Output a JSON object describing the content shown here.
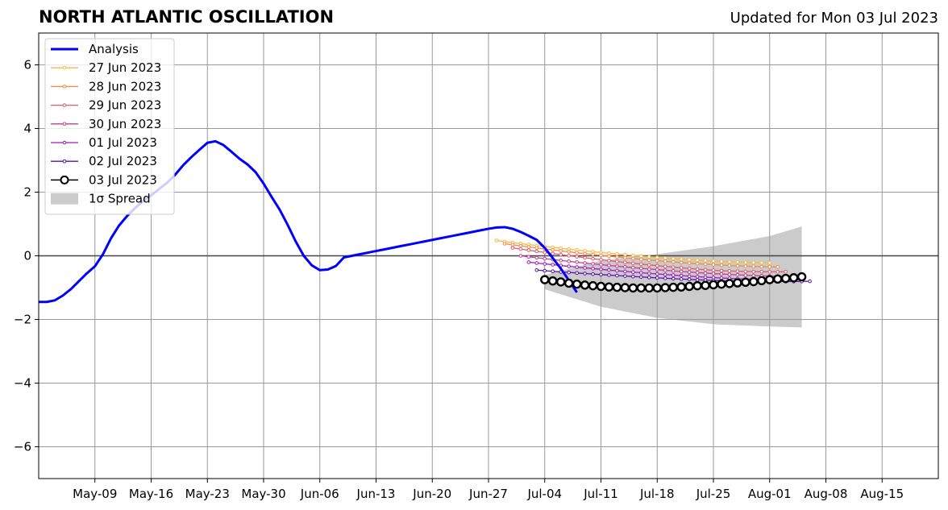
{
  "header": {
    "title": "NORTH ATLANTIC OSCILLATION",
    "updated": "Updated for Mon 03 Jul 2023"
  },
  "chart_data": {
    "type": "line",
    "title": "NORTH ATLANTIC OSCILLATION",
    "subtitle": "Updated for Mon 03 Jul 2023",
    "xlabel": "",
    "ylabel": "",
    "x_range": [
      "2023-05-02",
      "2023-08-22"
    ],
    "ylim": [
      -7,
      7
    ],
    "yticks": [
      -6,
      -4,
      -2,
      0,
      2,
      4,
      6
    ],
    "yticklabels": [
      "−6",
      "−4",
      "−2",
      "0",
      "2",
      "4",
      "6"
    ],
    "xticks": [
      "2023-05-09",
      "2023-05-16",
      "2023-05-23",
      "2023-05-30",
      "2023-06-06",
      "2023-06-13",
      "2023-06-20",
      "2023-06-27",
      "2023-07-04",
      "2023-07-11",
      "2023-07-18",
      "2023-07-25",
      "2023-08-01",
      "2023-08-08",
      "2023-08-15"
    ],
    "xticklabels": [
      "May-09",
      "May-16",
      "May-23",
      "May-30",
      "Jun-06",
      "Jun-13",
      "Jun-20",
      "Jun-27",
      "Jul-04",
      "Jul-11",
      "Jul-18",
      "Jul-25",
      "Aug-01",
      "Aug-08",
      "Aug-15"
    ],
    "grid": true,
    "legend_position": "top-left",
    "colors": {
      "analysis": "#0000ff",
      "spread": "#cbcbcb",
      "zero_line": "#444444",
      "grid": "#999999"
    },
    "analysis": {
      "name": "Analysis",
      "points": [
        [
          "2023-05-02",
          -1.45
        ],
        [
          "2023-05-03",
          -1.45
        ],
        [
          "2023-05-04",
          -1.4
        ],
        [
          "2023-05-05",
          -1.25
        ],
        [
          "2023-05-06",
          -1.05
        ],
        [
          "2023-05-07",
          -0.8
        ],
        [
          "2023-05-08",
          -0.55
        ],
        [
          "2023-05-09",
          -0.33
        ],
        [
          "2023-05-10",
          0.05
        ],
        [
          "2023-05-11",
          0.55
        ],
        [
          "2023-05-12",
          0.95
        ],
        [
          "2023-05-13",
          1.25
        ],
        [
          "2023-05-14",
          1.5
        ],
        [
          "2023-05-15",
          1.72
        ],
        [
          "2023-05-16",
          1.9
        ],
        [
          "2023-05-17",
          2.1
        ],
        [
          "2023-05-18",
          2.3
        ],
        [
          "2023-05-19",
          2.55
        ],
        [
          "2023-05-20",
          2.85
        ],
        [
          "2023-05-21",
          3.1
        ],
        [
          "2023-05-22",
          3.33
        ],
        [
          "2023-05-23",
          3.55
        ],
        [
          "2023-05-24",
          3.6
        ],
        [
          "2023-05-25",
          3.48
        ],
        [
          "2023-05-26",
          3.27
        ],
        [
          "2023-05-27",
          3.05
        ],
        [
          "2023-05-28",
          2.87
        ],
        [
          "2023-05-29",
          2.63
        ],
        [
          "2023-05-30",
          2.27
        ],
        [
          "2023-05-31",
          1.85
        ],
        [
          "2023-06-01",
          1.45
        ],
        [
          "2023-06-02",
          0.97
        ],
        [
          "2023-06-03",
          0.45
        ],
        [
          "2023-06-04",
          0.0
        ],
        [
          "2023-06-05",
          -0.3
        ],
        [
          "2023-06-06",
          -0.45
        ],
        [
          "2023-06-07",
          -0.43
        ],
        [
          "2023-06-08",
          -0.32
        ],
        [
          "2023-06-09",
          -0.05
        ],
        [
          "2023-06-10",
          0.0
        ],
        [
          "2023-06-11",
          0.05
        ],
        [
          "2023-06-12",
          0.1
        ],
        [
          "2023-06-13",
          0.15
        ],
        [
          "2023-06-14",
          0.2
        ],
        [
          "2023-06-15",
          0.25
        ],
        [
          "2023-06-16",
          0.3
        ],
        [
          "2023-06-17",
          0.35
        ],
        [
          "2023-06-18",
          0.4
        ],
        [
          "2023-06-19",
          0.45
        ],
        [
          "2023-06-20",
          0.5
        ],
        [
          "2023-06-21",
          0.55
        ],
        [
          "2023-06-22",
          0.6
        ],
        [
          "2023-06-23",
          0.65
        ],
        [
          "2023-06-24",
          0.7
        ],
        [
          "2023-06-25",
          0.75
        ],
        [
          "2023-06-26",
          0.8
        ],
        [
          "2023-06-27",
          0.85
        ],
        [
          "2023-06-28",
          0.89
        ],
        [
          "2023-06-29",
          0.9
        ],
        [
          "2023-06-30",
          0.85
        ],
        [
          "2023-07-01",
          0.75
        ],
        [
          "2023-07-02",
          0.63
        ],
        [
          "2023-07-03",
          0.5
        ],
        [
          "2023-07-04",
          0.25
        ],
        [
          "2023-07-05",
          -0.07
        ],
        [
          "2023-07-06",
          -0.4
        ],
        [
          "2023-07-07",
          -0.77
        ],
        [
          "2023-07-08",
          -1.15
        ]
      ]
    },
    "forecasts": [
      {
        "name": "27 Jun 2023",
        "color": "#f5b942",
        "start": "2023-06-28",
        "end": "2023-08-01",
        "y_start": 0.48,
        "y_min": -0.22,
        "y_end": -0.22
      },
      {
        "name": "28 Jun 2023",
        "color": "#f0894b",
        "start": "2023-06-29",
        "end": "2023-08-02",
        "y_start": 0.38,
        "y_min": -0.35,
        "y_end": -0.35
      },
      {
        "name": "29 Jun 2023",
        "color": "#dc5c6e",
        "start": "2023-06-30",
        "end": "2023-08-03",
        "y_start": 0.25,
        "y_min": -0.55,
        "y_end": -0.5
      },
      {
        "name": "30 Jun 2023",
        "color": "#c23c96",
        "start": "2023-07-01",
        "end": "2023-08-04",
        "y_start": 0.0,
        "y_min": -0.65,
        "y_end": -0.65
      },
      {
        "name": "01 Jul 2023",
        "color": "#9e1ab8",
        "start": "2023-07-02",
        "end": "2023-08-05",
        "y_start": -0.2,
        "y_min": -0.78,
        "y_end": -0.75
      },
      {
        "name": "02 Jul 2023",
        "color": "#5a0fa8",
        "start": "2023-07-03",
        "end": "2023-08-06",
        "y_start": -0.45,
        "y_min": -0.85,
        "y_end": -0.8
      }
    ],
    "current_forecast": {
      "name": "03 Jul 2023",
      "color": "#000000",
      "points": [
        [
          "2023-07-04",
          -0.75
        ],
        [
          "2023-07-05",
          -0.79
        ],
        [
          "2023-07-06",
          -0.82
        ],
        [
          "2023-07-07",
          -0.86
        ],
        [
          "2023-07-08",
          -0.89
        ],
        [
          "2023-07-09",
          -0.92
        ],
        [
          "2023-07-10",
          -0.94
        ],
        [
          "2023-07-11",
          -0.96
        ],
        [
          "2023-07-12",
          -0.98
        ],
        [
          "2023-07-13",
          -0.99
        ],
        [
          "2023-07-14",
          -1.0
        ],
        [
          "2023-07-15",
          -1.01
        ],
        [
          "2023-07-16",
          -1.01
        ],
        [
          "2023-07-17",
          -1.01
        ],
        [
          "2023-07-18",
          -1.01
        ],
        [
          "2023-07-19",
          -1.0
        ],
        [
          "2023-07-20",
          -0.99
        ],
        [
          "2023-07-21",
          -0.98
        ],
        [
          "2023-07-22",
          -0.96
        ],
        [
          "2023-07-23",
          -0.94
        ],
        [
          "2023-07-24",
          -0.93
        ],
        [
          "2023-07-25",
          -0.91
        ],
        [
          "2023-07-26",
          -0.89
        ],
        [
          "2023-07-27",
          -0.87
        ],
        [
          "2023-07-28",
          -0.85
        ],
        [
          "2023-07-29",
          -0.83
        ],
        [
          "2023-07-30",
          -0.81
        ],
        [
          "2023-07-31",
          -0.78
        ],
        [
          "2023-08-01",
          -0.75
        ],
        [
          "2023-08-02",
          -0.73
        ],
        [
          "2023-08-03",
          -0.71
        ],
        [
          "2023-08-04",
          -0.69
        ],
        [
          "2023-08-05",
          -0.66
        ]
      ]
    },
    "spread": {
      "name": "1σ Spread",
      "upper": [
        [
          "2023-07-04",
          -0.6
        ],
        [
          "2023-07-11",
          -0.15
        ],
        [
          "2023-07-18",
          0.05
        ],
        [
          "2023-07-25",
          0.3
        ],
        [
          "2023-08-01",
          0.62
        ],
        [
          "2023-08-05",
          0.92
        ]
      ],
      "lower": [
        [
          "2023-07-04",
          -1.05
        ],
        [
          "2023-07-11",
          -1.6
        ],
        [
          "2023-07-18",
          -1.95
        ],
        [
          "2023-07-25",
          -2.15
        ],
        [
          "2023-08-01",
          -2.22
        ],
        [
          "2023-08-05",
          -2.25
        ]
      ]
    }
  }
}
